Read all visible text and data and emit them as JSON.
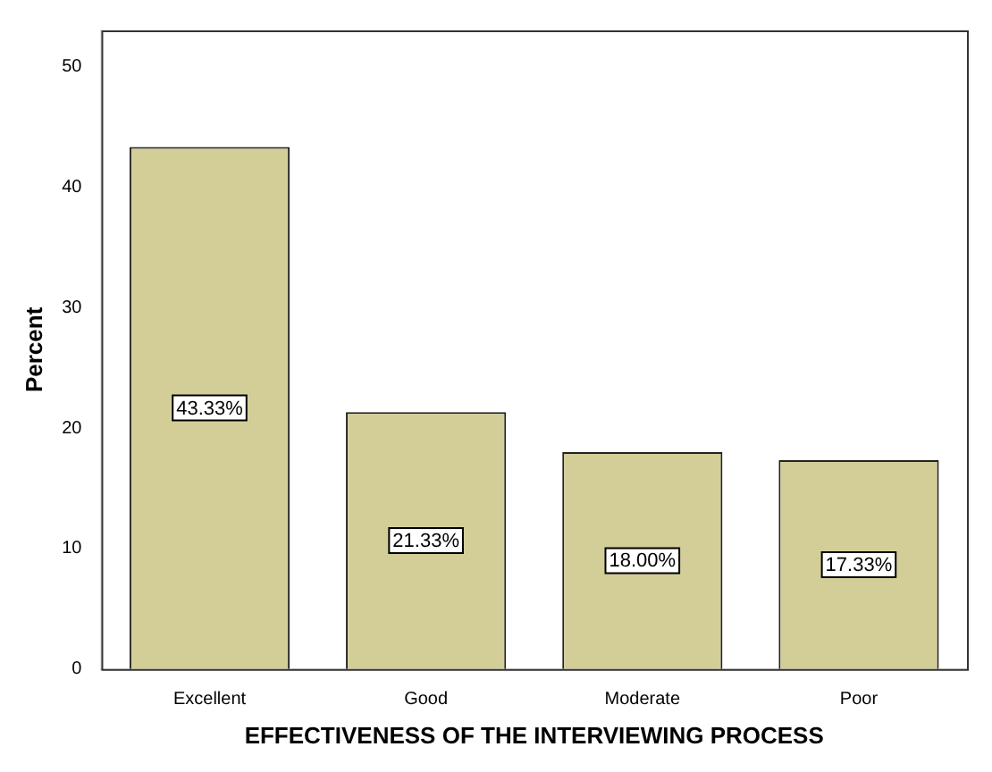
{
  "chart_data": {
    "type": "bar",
    "xlabel": "EFFECTIVENESS OF THE INTERVIEWING PROCESS",
    "ylabel": "Percent",
    "categories": [
      "Excellent",
      "Good",
      "Moderate",
      "Poor"
    ],
    "values": [
      43.33,
      21.33,
      18.0,
      17.33
    ],
    "value_labels": [
      "43.33%",
      "21.33%",
      "18.00%",
      "17.33%"
    ],
    "color": "#d3ce97",
    "ylim": [
      0,
      53
    ],
    "yticks": [
      0,
      10,
      20,
      30,
      40,
      50
    ],
    "grid": false,
    "legend": false
  }
}
